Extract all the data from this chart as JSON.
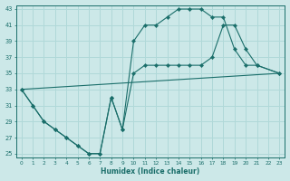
{
  "xlabel": "Humidex (Indice chaleur)",
  "xlim": [
    -0.5,
    23.5
  ],
  "ylim": [
    24.5,
    43.5
  ],
  "yticks": [
    25,
    27,
    29,
    31,
    33,
    35,
    37,
    39,
    41,
    43
  ],
  "xticks": [
    0,
    1,
    2,
    3,
    4,
    5,
    6,
    7,
    8,
    9,
    10,
    11,
    12,
    13,
    14,
    15,
    16,
    17,
    18,
    19,
    20,
    21,
    22,
    23
  ],
  "bg_color": "#cce8e8",
  "line_color": "#1a6e6a",
  "grid_color": "#b0d8d8",
  "line1_x": [
    0,
    1,
    2,
    3,
    4,
    5,
    6,
    7,
    8,
    9,
    10,
    11,
    12,
    13,
    14,
    15,
    16,
    17,
    18,
    19,
    20,
    21,
    23
  ],
  "line1_y": [
    33,
    31,
    29,
    28,
    27,
    26,
    25,
    25,
    32,
    28,
    39,
    41,
    41,
    42,
    43,
    43,
    43,
    42,
    42,
    38,
    36,
    36,
    35
  ],
  "line2_x": [
    0,
    1,
    2,
    3,
    4,
    5,
    6,
    7,
    8,
    9,
    10,
    11,
    12,
    13,
    14,
    15,
    16,
    17,
    18,
    19,
    20,
    21,
    23
  ],
  "line2_y": [
    33,
    31,
    29,
    28,
    27,
    26,
    25,
    25,
    32,
    28,
    35,
    36,
    36,
    36,
    36,
    36,
    36,
    37,
    41,
    41,
    38,
    36,
    35
  ],
  "line3_x": [
    0,
    23
  ],
  "line3_y": [
    33,
    35
  ],
  "line3_markers_x": [],
  "line3_markers_y": []
}
